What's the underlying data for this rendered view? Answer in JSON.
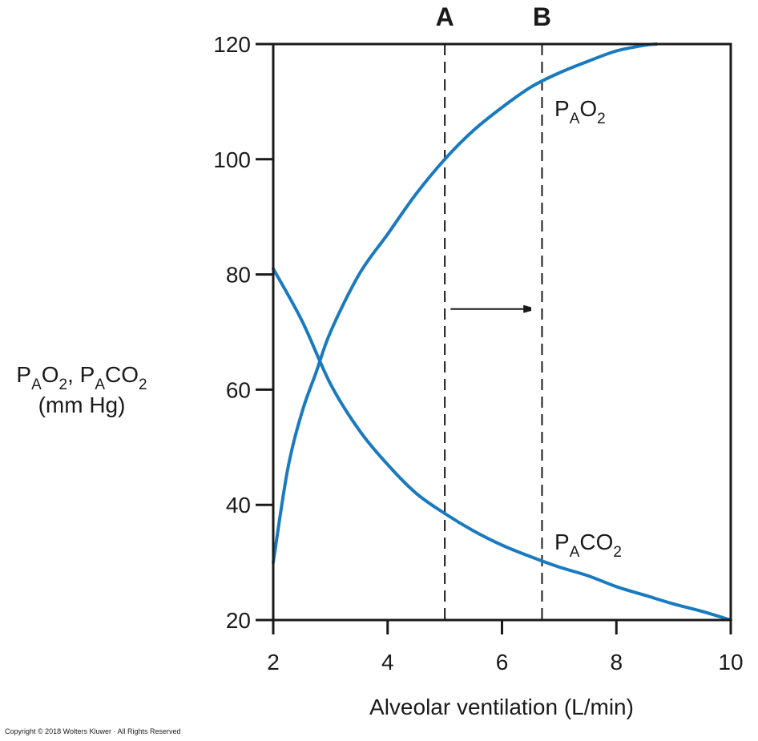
{
  "chart_data": {
    "type": "line",
    "xlabel": "Alveolar ventilation (L/min)",
    "ylabel_line1": {
      "a": "P",
      "a_sub": "A",
      "b": "O",
      "b_sub": "2",
      "c": ", P",
      "c_sub": "A",
      "d": "CO",
      "d_sub": "2"
    },
    "ylabel_line2": "(mm Hg)",
    "xlim": [
      2,
      10
    ],
    "ylim": [
      20,
      120
    ],
    "x_ticks": [
      2,
      4,
      6,
      8,
      10
    ],
    "y_ticks": [
      20,
      40,
      60,
      80,
      100,
      120
    ],
    "grid": false,
    "series": [
      {
        "key": "pao2",
        "label": {
          "main": "P",
          "sub": "A",
          "main2": "O",
          "sub2": "2"
        },
        "color": "#1a7abf",
        "x": [
          2,
          2.25,
          2.5,
          2.75,
          3,
          3.5,
          4,
          4.5,
          5,
          5.5,
          6,
          6.5,
          7,
          7.5,
          8,
          8.5,
          8.7
        ],
        "y": [
          30,
          46,
          56,
          63,
          70,
          80,
          87,
          94,
          100,
          105,
          109,
          112.5,
          115,
          117,
          118.8,
          119.8,
          120
        ]
      },
      {
        "key": "paco2",
        "label": {
          "main": "P",
          "sub": "A",
          "main2": "CO",
          "sub2": "2"
        },
        "color": "#1a7abf",
        "x": [
          2,
          2.5,
          3,
          3.5,
          4,
          4.5,
          5,
          5.5,
          6,
          6.5,
          7,
          7.5,
          8,
          8.5,
          9,
          9.5,
          10
        ],
        "y": [
          81,
          72,
          61,
          53,
          47,
          42,
          38.5,
          35.5,
          33,
          31,
          29.2,
          27.7,
          25.8,
          24.3,
          22.8,
          21.5,
          20
        ]
      }
    ],
    "markers": [
      {
        "label": "A",
        "x": 5
      },
      {
        "label": "B",
        "x": 6.7
      }
    ],
    "arrow": {
      "from_x": 5.1,
      "to_x": 6.5,
      "y": 74
    }
  },
  "footer": {
    "copyright": "Copyright © 2018 Wolters Kluwer · All Rights Reserved"
  }
}
